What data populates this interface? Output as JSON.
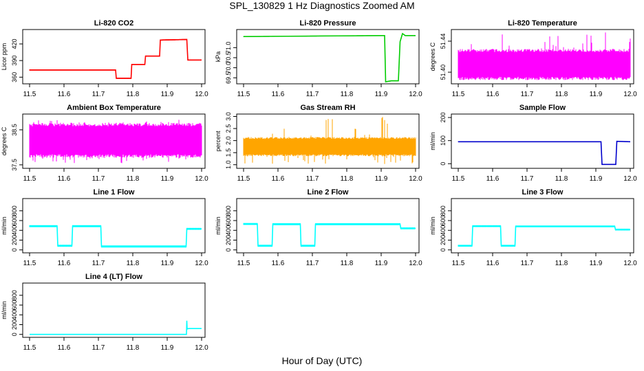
{
  "figure": {
    "title": "SPL_130829  1 Hz Diagnostics Zoomed AM",
    "xlabel": "Hour of Day (UTC)"
  },
  "chart_data": [
    {
      "id": "co2",
      "type": "line",
      "title": "Li-820 CO2",
      "ylabel": "Licor ppm",
      "color": "#ff0000",
      "xlim": [
        11.48,
        12.01
      ],
      "ylim": [
        348,
        446
      ],
      "xticks": [
        "11.5",
        "11.6",
        "11.7",
        "11.8",
        "11.9",
        "12.0"
      ],
      "yticks": [
        360,
        390,
        420
      ],
      "x": [
        11.5,
        11.75,
        11.752,
        11.795,
        11.797,
        11.835,
        11.837,
        11.878,
        11.88,
        11.957,
        11.96,
        12.0
      ],
      "y": [
        373,
        373,
        358,
        358,
        383,
        383,
        398,
        398,
        427,
        428,
        391,
        391
      ],
      "noise": 1
    },
    {
      "id": "pressure",
      "type": "line",
      "title": "Li-820 Pressure",
      "ylabel": "kPa",
      "color": "#00cc00",
      "xlim": [
        11.48,
        12.01
      ],
      "ylim": [
        69.2,
        71.9
      ],
      "xticks": [
        "11.5",
        "11.6",
        "11.7",
        "11.8",
        "11.9",
        "12.0"
      ],
      "yticks": [
        69.5,
        70.0,
        70.5,
        71.0
      ],
      "x": [
        11.5,
        11.9,
        11.91,
        11.913,
        11.93,
        11.95,
        11.955,
        11.962,
        11.97,
        12.0
      ],
      "y": [
        71.55,
        71.6,
        71.6,
        69.3,
        69.35,
        69.35,
        71.3,
        71.7,
        71.6,
        71.6
      ],
      "noise": 0.02
    },
    {
      "id": "licor_temp",
      "type": "line",
      "title": "Li-820 Temperature",
      "ylabel": "degrees C",
      "color": "#ff00ff",
      "xlim": [
        11.48,
        12.01
      ],
      "ylim": [
        51.385,
        51.455
      ],
      "xticks": [
        "11.5",
        "11.6",
        "11.7",
        "11.8",
        "11.9",
        "12.0"
      ],
      "yticks": [
        51.4,
        51.44
      ],
      "band": [
        51.39,
        51.43
      ],
      "spikes": [
        51.39,
        51.452
      ]
    },
    {
      "id": "box_temp",
      "type": "line",
      "title": "Ambient Box Temperature",
      "ylabel": "degrees C",
      "color": "#ff00ff",
      "xlim": [
        11.48,
        12.01
      ],
      "ylim": [
        37.4,
        38.95
      ],
      "xticks": [
        "11.5",
        "11.6",
        "11.7",
        "11.8",
        "11.9",
        "12.0"
      ],
      "yticks": [
        37.5,
        38.5
      ],
      "band": [
        37.7,
        38.7
      ],
      "spikes": [
        37.55,
        38.8
      ]
    },
    {
      "id": "rh",
      "type": "line",
      "title": "Gas Stream RH",
      "ylabel": "percent",
      "color": "#ffa500",
      "xlim": [
        11.48,
        12.01
      ],
      "ylim": [
        0.85,
        3.1
      ],
      "xticks": [
        "11.5",
        "11.6",
        "11.7",
        "11.8",
        "11.9",
        "12.0"
      ],
      "yticks": [
        1.0,
        1.5,
        2.0,
        2.5,
        3.0
      ],
      "band": [
        1.35,
        2.15
      ],
      "spikes": [
        1.0,
        3.0
      ]
    },
    {
      "id": "sample_flow",
      "type": "line",
      "title": "Sample Flow",
      "ylabel": "ml/min",
      "color": "#0000cc",
      "xlim": [
        11.48,
        12.01
      ],
      "ylim": [
        -20,
        215
      ],
      "xticks": [
        "11.5",
        "11.6",
        "11.7",
        "11.8",
        "11.9",
        "12.0"
      ],
      "yticks": [
        0,
        100,
        200
      ],
      "x": [
        11.5,
        11.915,
        11.918,
        11.958,
        11.961,
        12.0
      ],
      "y": [
        95,
        95,
        -3,
        -3,
        97,
        95
      ],
      "noise": 1.5
    },
    {
      "id": "line1",
      "type": "line",
      "title": "Line 1 Flow",
      "ylabel": "ml/min",
      "color": "#00ffff",
      "xlim": [
        11.48,
        12.01
      ],
      "ylim": [
        -60,
        1050
      ],
      "xticks": [
        "11.5",
        "11.6",
        "11.7",
        "11.8",
        "11.9",
        "12.0"
      ],
      "yticks": [
        0,
        200,
        400,
        600,
        800
      ],
      "x": [
        11.5,
        11.58,
        11.582,
        11.623,
        11.625,
        11.707,
        11.709,
        11.955,
        11.957,
        12.0
      ],
      "y": [
        485,
        485,
        85,
        85,
        485,
        485,
        70,
        70,
        430,
        430
      ],
      "noise": 20
    },
    {
      "id": "line2",
      "type": "line",
      "title": "Line 2 Flow",
      "ylabel": "ml/min",
      "color": "#00ffff",
      "xlim": [
        11.48,
        12.01
      ],
      "ylim": [
        -60,
        1050
      ],
      "xticks": [
        "11.5",
        "11.6",
        "11.7",
        "11.8",
        "11.9",
        "12.0"
      ],
      "yticks": [
        0,
        200,
        400,
        600,
        800
      ],
      "x": [
        11.5,
        11.54,
        11.542,
        11.583,
        11.585,
        11.665,
        11.667,
        11.707,
        11.709,
        11.955,
        11.957,
        12.0
      ],
      "y": [
        530,
        530,
        85,
        85,
        525,
        525,
        85,
        85,
        525,
        525,
        440,
        440
      ],
      "noise": 20
    },
    {
      "id": "line3",
      "type": "line",
      "title": "Line 3 Flow",
      "ylabel": "ml/min",
      "color": "#00ffff",
      "xlim": [
        11.48,
        12.01
      ],
      "ylim": [
        -60,
        1050
      ],
      "xticks": [
        "11.5",
        "11.6",
        "11.7",
        "11.8",
        "11.9",
        "12.0"
      ],
      "yticks": [
        0,
        200,
        400,
        600,
        800
      ],
      "x": [
        11.5,
        11.54,
        11.542,
        11.623,
        11.625,
        11.665,
        11.667,
        11.955,
        11.957,
        12.0
      ],
      "y": [
        85,
        85,
        485,
        485,
        85,
        85,
        480,
        480,
        415,
        415
      ],
      "noise": 18
    },
    {
      "id": "line4",
      "type": "line",
      "title": "Line 4 (LT) Flow",
      "ylabel": "ml/min",
      "color": "#00ffff",
      "xlim": [
        11.48,
        12.01
      ],
      "ylim": [
        -60,
        1050
      ],
      "xticks": [
        "11.5",
        "11.6",
        "11.7",
        "11.8",
        "11.9",
        "12.0"
      ],
      "yticks": [
        0,
        200,
        400,
        600,
        800
      ],
      "x": [
        11.5,
        11.956,
        11.957,
        11.958,
        11.962,
        12.0
      ],
      "y": [
        0,
        0,
        280,
        110,
        120,
        120
      ],
      "noise": 0
    }
  ]
}
